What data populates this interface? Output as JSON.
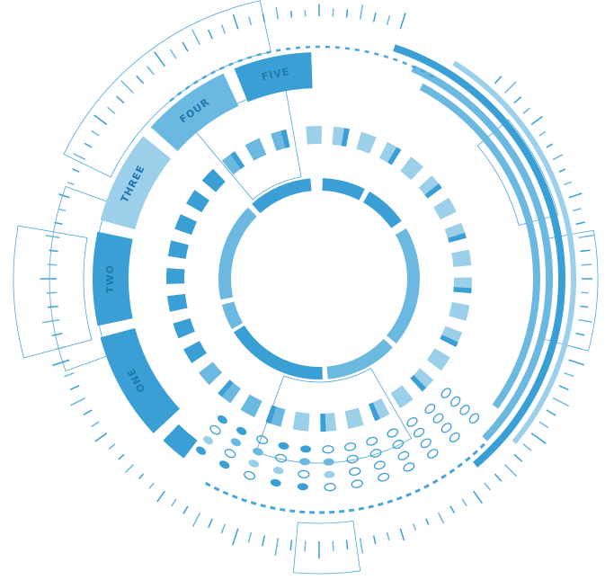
{
  "hud": {
    "labels": [
      "ONE",
      "TWO",
      "THREE",
      "FOUR",
      "FIVE"
    ]
  },
  "colors": {
    "dark": "#3a9fd4",
    "mid": "#6bb8e0",
    "light": "#9ccfea",
    "line": "#4aa6d8"
  }
}
